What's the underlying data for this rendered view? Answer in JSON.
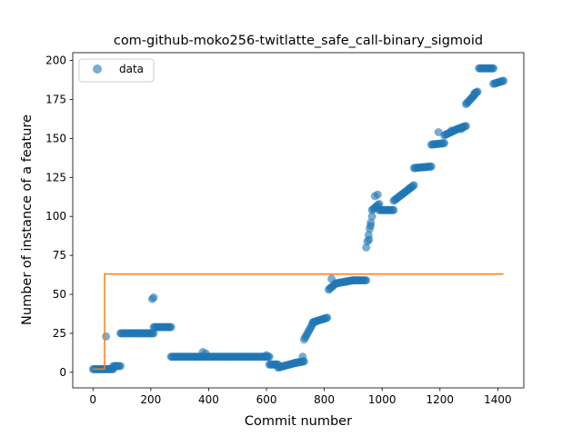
{
  "chart_data": {
    "type": "scatter",
    "title": "com-github-moko256-twitlatte_safe_call-binary_sigmoid",
    "xlabel": "Commit number",
    "ylabel": "Number of instance of a feature",
    "xlim": [
      -70,
      1490
    ],
    "ylim": [
      -10,
      205
    ],
    "xticks": [
      0,
      200,
      400,
      600,
      800,
      1000,
      1200,
      1400
    ],
    "yticks": [
      0,
      25,
      50,
      75,
      100,
      125,
      150,
      175,
      200
    ],
    "legend": {
      "placement": "top-left",
      "entries": [
        "data"
      ]
    },
    "grid": false,
    "colors": {
      "data": "#1f77b4",
      "fit": "#ff7f0e"
    },
    "series": [
      {
        "name": "data",
        "style": "markers",
        "segments": [
          {
            "x": [
              0,
              70
            ],
            "y": [
              2,
              2
            ]
          },
          {
            "x": [
              70,
              95
            ],
            "y": [
              4,
              4
            ]
          },
          {
            "x": [
              95,
              210
            ],
            "y": [
              25,
              25
            ]
          },
          {
            "x": [
              210,
              270
            ],
            "y": [
              29,
              29
            ]
          },
          {
            "x": [
              270,
              610
            ],
            "y": [
              10,
              10
            ]
          },
          {
            "x": [
              610,
              640
            ],
            "y": [
              5,
              5
            ]
          },
          {
            "x": [
              640,
              700
            ],
            "y": [
              3,
              6
            ]
          },
          {
            "x": [
              700,
              730
            ],
            "y": [
              6,
              7
            ]
          },
          {
            "x": [
              730,
              760
            ],
            "y": [
              21,
              31
            ]
          },
          {
            "x": [
              760,
              810
            ],
            "y": [
              32,
              35
            ]
          },
          {
            "x": [
              815,
              840
            ],
            "y": [
              53,
              57
            ]
          },
          {
            "x": [
              840,
              900
            ],
            "y": [
              57,
              59
            ]
          },
          {
            "x": [
              900,
              945
            ],
            "y": [
              59,
              59
            ]
          },
          {
            "x": [
              945,
              965
            ],
            "y": [
              80,
              100
            ]
          },
          {
            "x": [
              965,
              990
            ],
            "y": [
              104,
              108
            ]
          },
          {
            "x": [
              990,
              1040
            ],
            "y": [
              104,
              104
            ]
          },
          {
            "x": [
              1040,
              1110
            ],
            "y": [
              110,
              120
            ]
          },
          {
            "x": [
              1110,
              1170
            ],
            "y": [
              131,
              132
            ]
          },
          {
            "x": [
              1170,
              1215
            ],
            "y": [
              146,
              147
            ]
          },
          {
            "x": [
              1215,
              1260
            ],
            "y": [
              152,
              156
            ]
          },
          {
            "x": [
              1260,
              1290
            ],
            "y": [
              156,
              158
            ]
          },
          {
            "x": [
              1290,
              1320
            ],
            "y": [
              172,
              178
            ]
          },
          {
            "x": [
              1320,
              1330
            ],
            "y": [
              179,
              180
            ]
          },
          {
            "x": [
              1335,
              1385
            ],
            "y": [
              195,
              195
            ]
          },
          {
            "x": [
              1385,
              1420
            ],
            "y": [
              185,
              187
            ]
          }
        ],
        "points": [
          {
            "x": 45,
            "y": 23
          },
          {
            "x": 205,
            "y": 47
          },
          {
            "x": 210,
            "y": 48
          },
          {
            "x": 380,
            "y": 13
          },
          {
            "x": 390,
            "y": 12
          },
          {
            "x": 600,
            "y": 11
          },
          {
            "x": 725,
            "y": 10
          },
          {
            "x": 825,
            "y": 60
          },
          {
            "x": 955,
            "y": 85
          },
          {
            "x": 960,
            "y": 94
          },
          {
            "x": 975,
            "y": 113
          },
          {
            "x": 985,
            "y": 114
          },
          {
            "x": 1095,
            "y": 118
          },
          {
            "x": 1195,
            "y": 154
          },
          {
            "x": 1240,
            "y": 155
          },
          {
            "x": 1275,
            "y": 156
          }
        ]
      },
      {
        "name": "",
        "style": "line",
        "x": [
          0,
          40,
          40,
          1420
        ],
        "y": [
          2,
          2,
          63,
          63
        ]
      }
    ]
  }
}
